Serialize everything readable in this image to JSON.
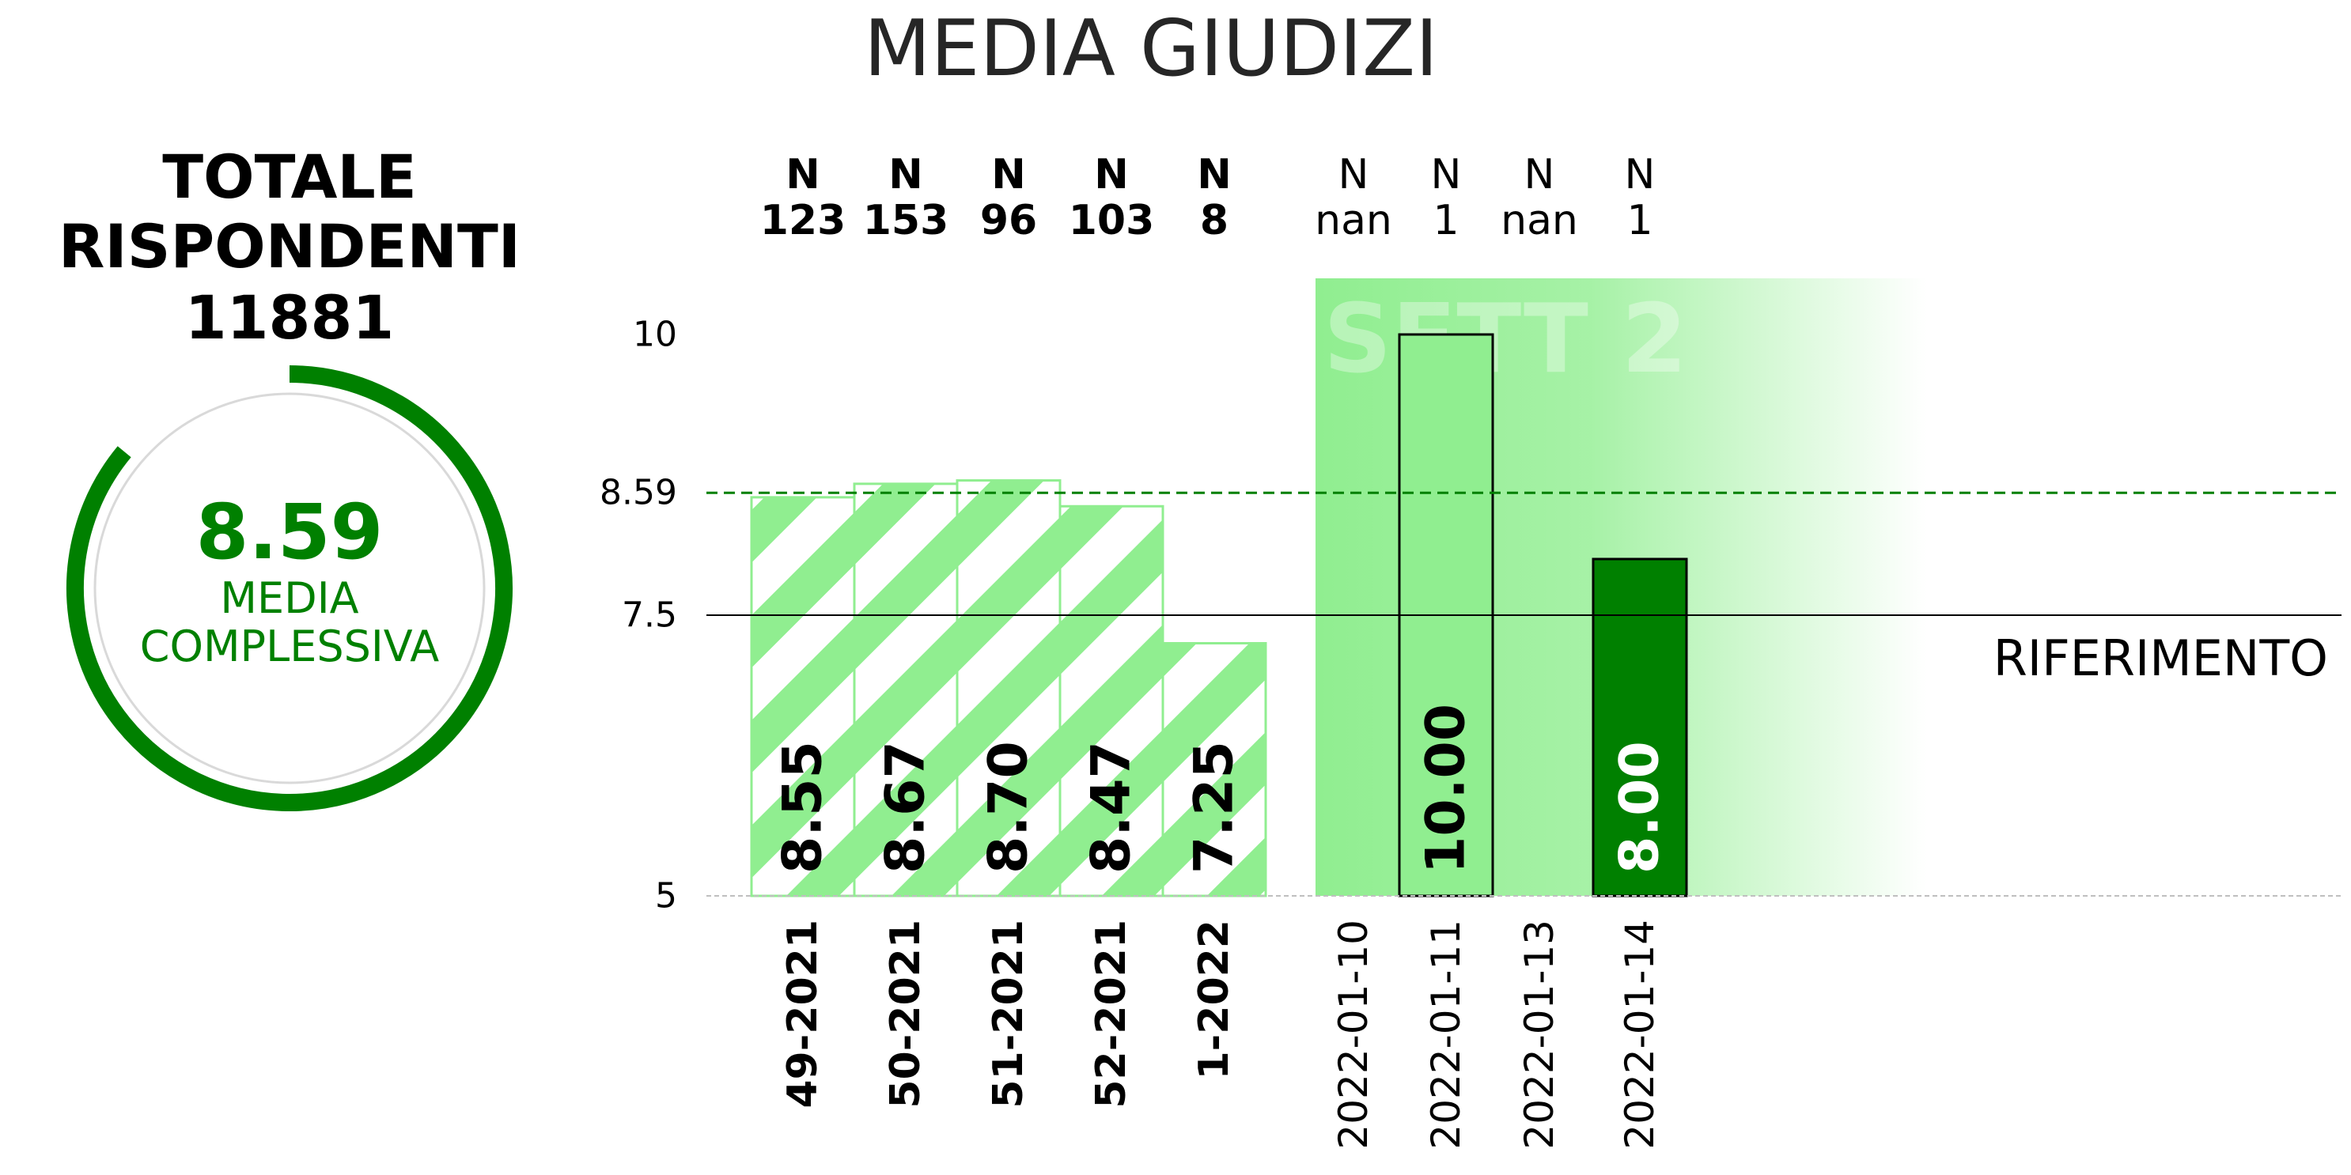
{
  "header": {
    "title": "MEDIA GIUDIZI"
  },
  "summary": {
    "total_label_line1": "TOTALE",
    "total_label_line2": "RISPONDENTI",
    "total_value": "11881",
    "average_value": "8.59",
    "average_label_line1": "MEDIA",
    "average_label_line2": "COMPLESSIVA",
    "gauge_fraction": 0.86
  },
  "chart_data": {
    "type": "bar",
    "title": "MEDIA GIUDIZI",
    "ylim": [
      5,
      10.5
    ],
    "yticks": [
      {
        "value": 5,
        "label": "5"
      },
      {
        "value": 7.5,
        "label": "7.5"
      },
      {
        "value": 8.59,
        "label": "8.59"
      },
      {
        "value": 10,
        "label": "10"
      }
    ],
    "reference": {
      "value": 7.5,
      "label": "RIFERIMENTO"
    },
    "overall_average": 8.59,
    "n_prefix": "N",
    "weekly": [
      {
        "category": "49-2021",
        "value": 8.55,
        "label": "8.55",
        "n": "123"
      },
      {
        "category": "50-2021",
        "value": 8.67,
        "label": "8.67",
        "n": "153"
      },
      {
        "category": "51-2021",
        "value": 8.7,
        "label": "8.70",
        "n": "96"
      },
      {
        "category": "52-2021",
        "value": 8.47,
        "label": "8.47",
        "n": "103"
      },
      {
        "category": "1-2022",
        "value": 7.25,
        "label": "7.25",
        "n": "8"
      }
    ],
    "daily": [
      {
        "category": "2022-01-10",
        "value": null,
        "label": "",
        "n": "nan"
      },
      {
        "category": "2022-01-11",
        "value": 10.0,
        "label": "10.00",
        "n": "1",
        "color": "#90ee90",
        "text_color": "#000000"
      },
      {
        "category": "2022-01-13",
        "value": null,
        "label": "",
        "n": "nan"
      },
      {
        "category": "2022-01-14",
        "value": 8.0,
        "label": "8.00",
        "n": "1",
        "color": "#008000",
        "text_color": "#ffffff"
      }
    ],
    "week_band_label": "SETT 2",
    "colors": {
      "accent": "#008000",
      "light": "#90ee90",
      "reference_line": "#000000",
      "average_line": "#008000"
    }
  }
}
